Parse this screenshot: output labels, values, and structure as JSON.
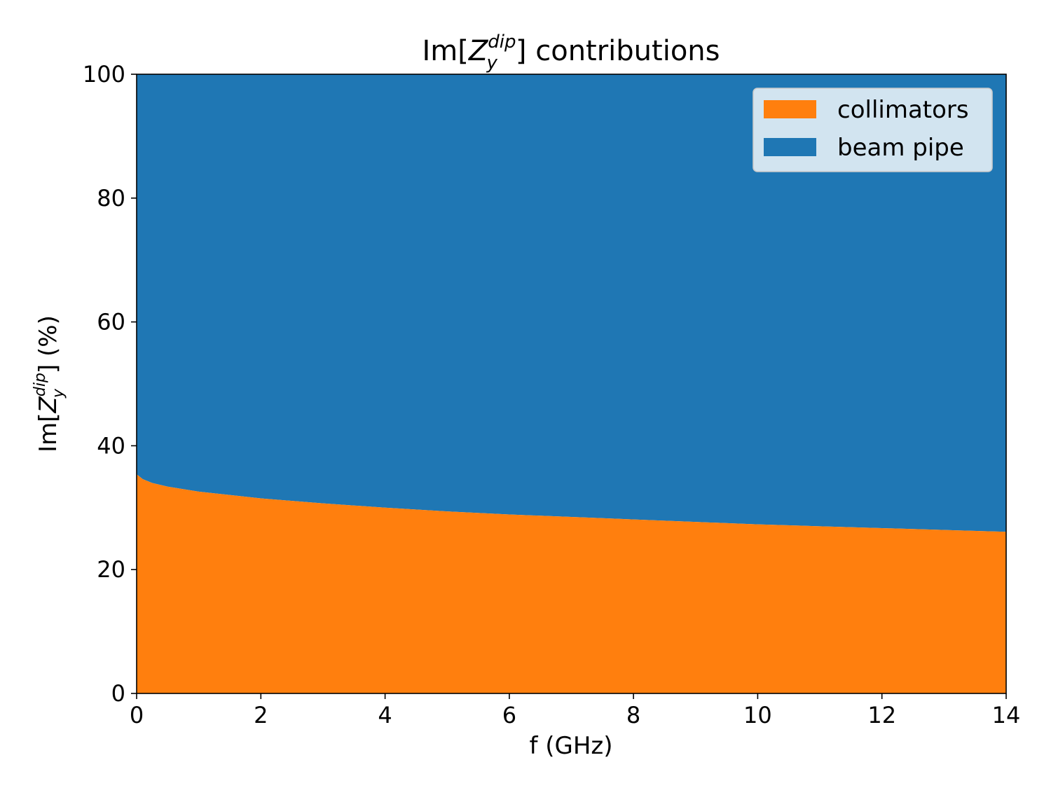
{
  "chart_data": {
    "type": "area",
    "stacked": true,
    "title": {
      "prefix": "Im[",
      "var": "Z",
      "sup": "dip",
      "sub": "y",
      "suffix": "] contributions"
    },
    "xlabel": "f (GHz)",
    "ylabel": {
      "prefix": "Im[",
      "var": "Z",
      "sup": "dip",
      "sub": "y",
      "suffix": "] (%)"
    },
    "xlim": [
      0,
      14
    ],
    "ylim": [
      0,
      100
    ],
    "xticks": [
      "0",
      "2",
      "4",
      "6",
      "8",
      "10",
      "12",
      "14"
    ],
    "yticks": [
      "0",
      "20",
      "40",
      "60",
      "80",
      "100"
    ],
    "grid": false,
    "legend_position": "top-right",
    "x": [
      0,
      0.1,
      0.25,
      0.5,
      1,
      2,
      3,
      4,
      5,
      6,
      7,
      8,
      9,
      10,
      11,
      12,
      13,
      14
    ],
    "series": [
      {
        "name": "collimators",
        "color": "#ff7f0e",
        "values": [
          35.4,
          34.6,
          34.0,
          33.4,
          32.6,
          31.5,
          30.7,
          30.0,
          29.4,
          28.9,
          28.5,
          28.1,
          27.7,
          27.3,
          27.0,
          26.7,
          26.4,
          26.1
        ]
      },
      {
        "name": "beam pipe",
        "color": "#1f77b4",
        "values": [
          64.6,
          65.4,
          66.0,
          66.6,
          67.4,
          68.5,
          69.3,
          70.0,
          70.6,
          71.1,
          71.5,
          71.9,
          72.3,
          72.7,
          73.0,
          73.3,
          73.6,
          73.9
        ]
      }
    ]
  }
}
